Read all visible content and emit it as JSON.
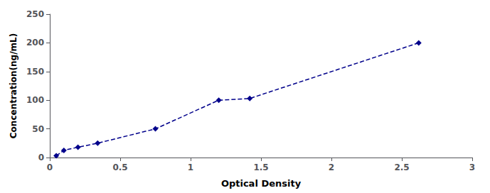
{
  "chart_data": {
    "type": "line",
    "x": [
      0.046,
      0.1,
      0.2,
      0.34,
      0.75,
      1.2,
      1.42,
      2.62
    ],
    "values": [
      3.0,
      12.5,
      18.0,
      25.0,
      50.0,
      100.0,
      103.0,
      200.0
    ],
    "color": "#00008B",
    "marker": "diamond",
    "line_style": "dashed",
    "xlabel": "Optical Density",
    "ylabel": "Concentration(ng/mL)",
    "xlim": [
      0,
      3
    ],
    "ylim": [
      0,
      250
    ],
    "xticks": [
      0,
      0.5,
      1,
      1.5,
      2,
      2.5,
      3
    ],
    "yticks": [
      0,
      50,
      100,
      150,
      200,
      250
    ],
    "grid": false
  }
}
